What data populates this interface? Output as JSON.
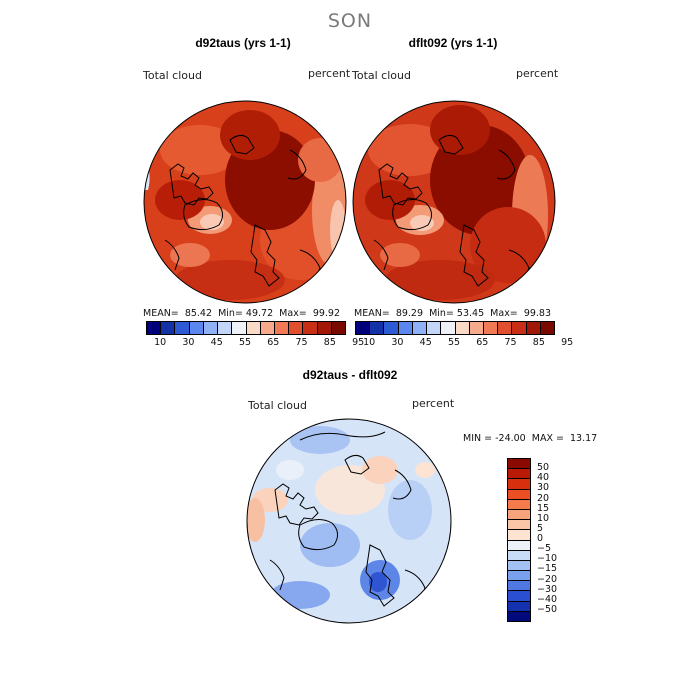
{
  "season": "SON",
  "panels": [
    {
      "title": "d92taus (yrs 1-1)",
      "var_label": "Total cloud",
      "units": "percent",
      "stats": {
        "mean_label": "MEAN=",
        "mean": "85.42",
        "min_label": "Min=",
        "min": "49.72",
        "max_label": "Max=",
        "max": "99.92"
      }
    },
    {
      "title": "dflt092 (yrs 1-1)",
      "var_label": "Total cloud",
      "units": "percent",
      "stats": {
        "mean_label": "MEAN=",
        "mean": "89.29",
        "min_label": "Min=",
        "min": "53.45",
        "max_label": "Max=",
        "max": "99.83"
      }
    }
  ],
  "main_colorbar": {
    "tick_labels": [
      "10",
      "30",
      "45",
      "55",
      "65",
      "75",
      "85",
      "95"
    ],
    "colors": [
      "#00007f",
      "#1432a8",
      "#2d5bd6",
      "#5b87ee",
      "#8fb1f5",
      "#c2d6fa",
      "#eef2f8",
      "#fbd9c7",
      "#f7ab8c",
      "#f07a56",
      "#e24f2f",
      "#c92f17",
      "#a21808",
      "#7a0a00"
    ]
  },
  "diff_panel": {
    "title": "d92taus - dflt092",
    "var_label": "Total cloud",
    "units": "percent",
    "minmax_text": "MIN = -24.00  MAX =  13.17"
  },
  "diff_colorbar": {
    "tick_labels": [
      "50",
      "40",
      "30",
      "20",
      "15",
      "10",
      "5",
      "0",
      "−5",
      "−10",
      "−15",
      "−20",
      "−30",
      "−40",
      "−50"
    ],
    "colors": [
      "#8b0a00",
      "#b81a05",
      "#d8300f",
      "#ec4f24",
      "#f57a4c",
      "#f8a37c",
      "#fbc6a8",
      "#fde3d2",
      "#edf1f8",
      "#c9dcf7",
      "#a3c1f3",
      "#7aa1ee",
      "#4f78e2",
      "#2a4fd0",
      "#1432b0",
      "#000a7a"
    ]
  }
}
